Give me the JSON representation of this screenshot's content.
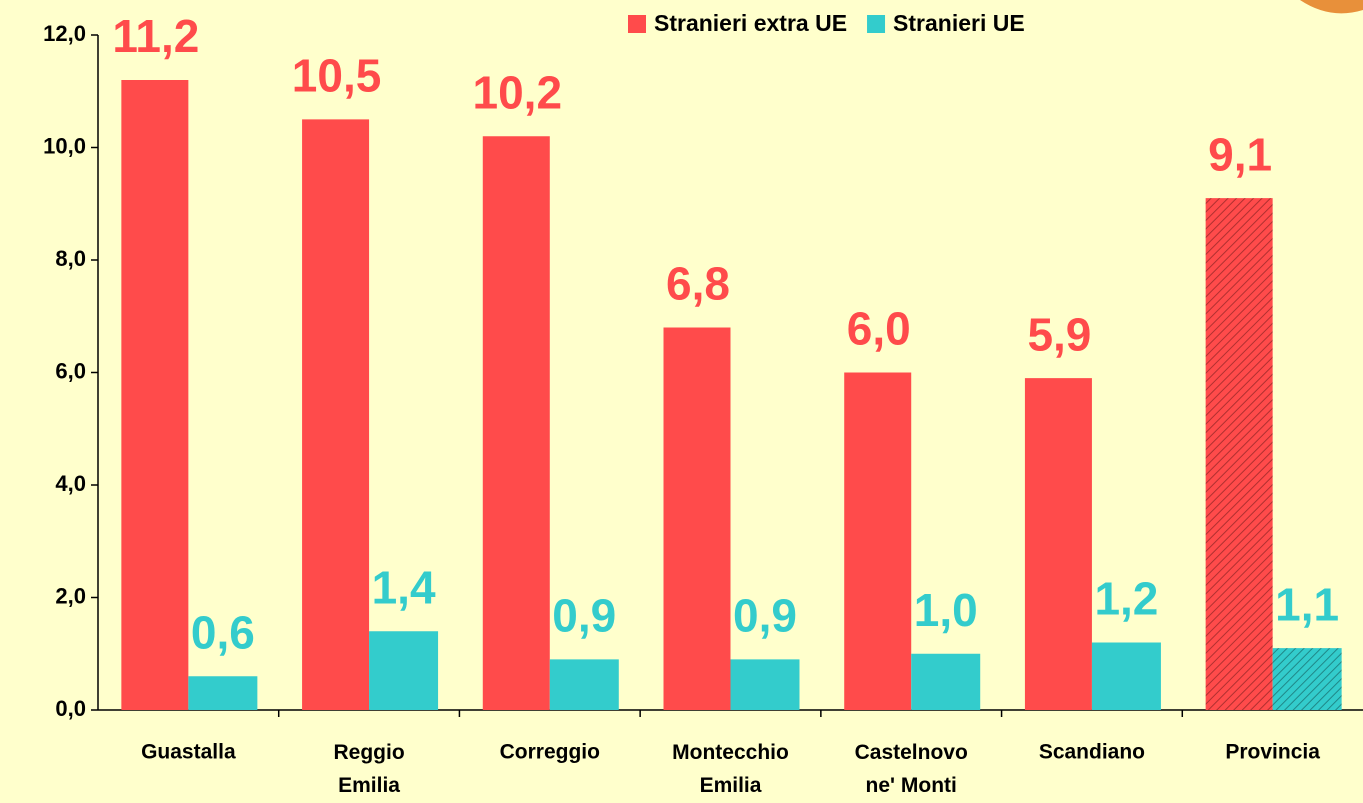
{
  "chart_data": {
    "type": "bar",
    "categories": [
      "Guastalla",
      "Reggio Emilia",
      "Correggio",
      "Montecchio Emilia",
      "Castelnovo ne' Monti",
      "Scandiano",
      "Provincia"
    ],
    "series": [
      {
        "name": "Stranieri extra UE",
        "color": "#ff4b4b",
        "values": [
          11.2,
          10.5,
          10.2,
          6.8,
          6.0,
          5.9,
          9.1
        ],
        "value_labels": [
          "11,2",
          "10,5",
          "10,2",
          "6,8",
          "6,0",
          "5,9",
          "9,1"
        ]
      },
      {
        "name": "Stranieri UE",
        "color": "#33cccc",
        "values": [
          0.6,
          1.4,
          0.9,
          0.9,
          1.0,
          1.2,
          1.1
        ],
        "value_labels": [
          "0,6",
          "1,4",
          "0,9",
          "0,9",
          "1,0",
          "1,2",
          "1,1"
        ]
      }
    ],
    "ylim": [
      0,
      12
    ],
    "yticks": [
      {
        "value": 0,
        "label": "0,0"
      },
      {
        "value": 2,
        "label": "2,0"
      },
      {
        "value": 4,
        "label": "4,0"
      },
      {
        "value": 6,
        "label": "6,0"
      },
      {
        "value": 8,
        "label": "8,0"
      },
      {
        "value": 10,
        "label": "10,0"
      },
      {
        "value": 12,
        "label": "12,0"
      }
    ],
    "grid": false,
    "legend": "top",
    "hatched_category": "Provincia"
  }
}
